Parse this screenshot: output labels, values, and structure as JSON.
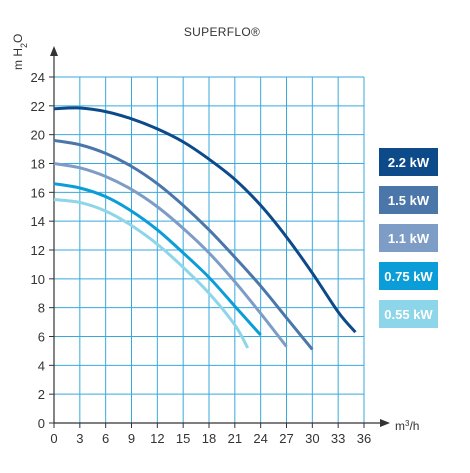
{
  "chart_data": {
    "type": "line",
    "title": "SUPERFLO®",
    "ylabel": "m H2O",
    "ylabel_parts": {
      "pre": "m H",
      "sub": "2",
      "post": "O"
    },
    "xlabel": "m3/h",
    "xlabel_parts": {
      "pre": "m",
      "sup": "3",
      "post": "/h"
    },
    "xlim": [
      0,
      36
    ],
    "ylim": [
      0,
      24
    ],
    "xticks": [
      0,
      3,
      6,
      9,
      12,
      15,
      18,
      21,
      24,
      27,
      30,
      33,
      36
    ],
    "yticks": [
      0,
      2,
      4,
      6,
      8,
      10,
      12,
      14,
      16,
      18,
      20,
      22,
      24
    ],
    "grid": true,
    "legend_position": "right",
    "series": [
      {
        "name": "2.2 kW",
        "color": "#0d4a8a",
        "x": [
          0,
          3,
          6,
          9,
          12,
          15,
          18,
          21,
          24,
          27,
          30,
          33,
          35
        ],
        "y": [
          21.8,
          21.85,
          21.6,
          21.1,
          20.4,
          19.5,
          18.3,
          16.9,
          15.1,
          12.9,
          10.4,
          7.7,
          6.3
        ]
      },
      {
        "name": "1.5 kW",
        "color": "#4a76aa",
        "x": [
          0,
          3,
          6,
          9,
          12,
          15,
          18,
          21,
          24,
          27,
          30
        ],
        "y": [
          19.6,
          19.3,
          18.7,
          17.8,
          16.6,
          15.1,
          13.4,
          11.5,
          9.5,
          7.3,
          5.1
        ]
      },
      {
        "name": "1.1 kW",
        "color": "#7d9dc7",
        "x": [
          0,
          3,
          6,
          9,
          12,
          15,
          18,
          21,
          24,
          27
        ],
        "y": [
          18.0,
          17.7,
          17.1,
          16.2,
          15.0,
          13.5,
          11.8,
          9.8,
          7.6,
          5.3
        ]
      },
      {
        "name": "0.75 kW",
        "color": "#0a9dd8",
        "x": [
          0,
          3,
          6,
          9,
          12,
          15,
          18,
          21,
          24
        ],
        "y": [
          16.6,
          16.3,
          15.7,
          14.7,
          13.4,
          11.8,
          10.1,
          8.1,
          6.1
        ]
      },
      {
        "name": "0.55 kW",
        "color": "#8dd5e8",
        "x": [
          0,
          3,
          6,
          9,
          12,
          15,
          18,
          21,
          22.5
        ],
        "y": [
          15.5,
          15.3,
          14.7,
          13.7,
          12.4,
          10.8,
          9.0,
          6.8,
          5.2
        ]
      }
    ]
  }
}
